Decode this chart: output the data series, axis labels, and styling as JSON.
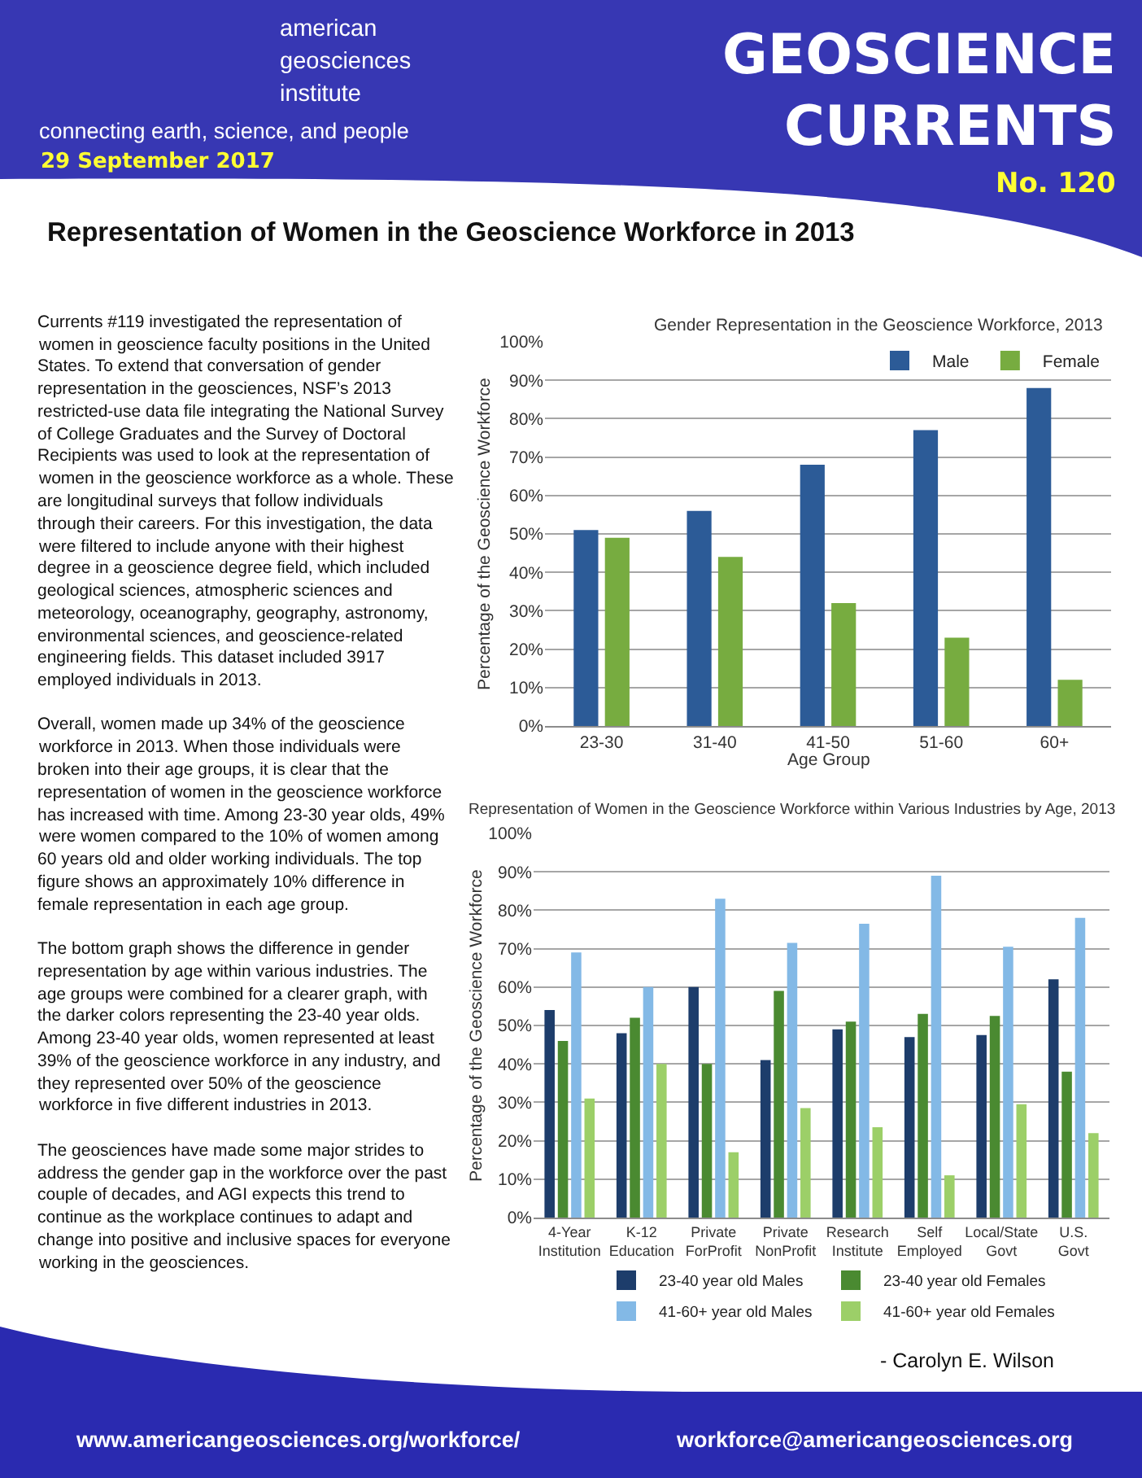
{
  "chart_data": [
    {
      "type": "other",
      "title": "Representation of Women in the Geoscience Workforce in 2013",
      "annotations": [
        "american\ngeosciences\ninstitute",
        "connecting earth, science, and people",
        "29 September 2017",
        "GEOSCIENCE\nCURRENTS",
        "No. 120",
        "Currents #119 investigated the representation of\nwomen in geoscience faculty positions in the United\nStates. To extend that conversation of gender\nrepresentation in the geosciences, NSF’s 2013\nrestricted-use data file integrating the National Survey\nof College Graduates and the Survey of Doctoral\nRecipients was used to look at the representation of\nwomen in the geoscience workforce as a whole. These\nare longitudinal surveys that follow individuals\nthrough their careers. For this investigation, the data\nwere filtered to include anyone with their highest\ndegree in a geoscience degree field, which included\ngeological sciences, atmospheric sciences and\nmeteorology, oceanography, geography, astronomy,\nenvironmental sciences, and geoscience-related\nengineering fields. This dataset included 3917\nemployed individuals in 2013.",
        "Overall, women made up 34% of the geoscience\nworkforce in 2013. When those individuals were\nbroken into their age groups, it is clear that the\nrepresentation of women in the geoscience workforce\nhas increased with time. Among 23-30 year olds, 49%\nwere women compared to the 10% of women among\n60 years old and older working individuals. The top\nfigure shows an approximately 10% difference in\nfemale representation in each age group.",
        "The bottom graph shows the difference in gender\nrepresentation by age within various industries. The\nage groups were combined for a clearer graph, with\nthe darker colors representing the 23-40 year olds.\nAmong 23-40 year olds, women represented at least\n39% of the geoscience workforce in any industry, and\nthey represented over 50% of the geoscience\nworkforce in five different industries in 2013.",
        "The geosciences have made some major strides to\naddress the gender gap in the workforce over the past\ncouple of decades, and AGI expects this trend to\ncontinue as the workplace continues to adapt and\nchange into positive and inclusive spaces for everyone\nworking in the geosciences."
      ]
    },
    {
      "type": "bar",
      "title": "Gender Representation in the Geoscience Workforce, 2013",
      "xlabel": "Age Group",
      "ylabel": "Percentage of the Geoscience Workforce",
      "categories": [
        "23-30",
        "31-40",
        "41-50",
        "51-60",
        "60+"
      ],
      "series": [
        {
          "name": "Male",
          "color": "#2c5b97",
          "values": [
            51,
            56,
            68,
            77,
            88
          ]
        },
        {
          "name": "Female",
          "color": "#77ac40",
          "values": [
            49,
            44,
            32,
            23,
            12
          ]
        }
      ],
      "ylim": [
        0,
        100
      ],
      "yticks": [
        {
          "value": 0,
          "label": "0%"
        },
        {
          "value": 10,
          "label": "10%"
        },
        {
          "value": 20,
          "label": "20%"
        },
        {
          "value": 30,
          "label": "30%"
        },
        {
          "value": 40,
          "label": "40%"
        },
        {
          "value": 50,
          "label": "50%"
        },
        {
          "value": 60,
          "label": "60%"
        },
        {
          "value": 70,
          "label": "70%"
        },
        {
          "value": 80,
          "label": "80%"
        },
        {
          "value": 90,
          "label": "90%"
        },
        {
          "value": 100,
          "label": "100%"
        }
      ],
      "grid": "y",
      "legend": "top right"
    },
    {
      "type": "bar",
      "title": "Representation of Women in the Geoscience Workforce within Various Industries by Age, 2013",
      "ylabel": "Percentage of the Geoscience Workforce",
      "categories": [
        "4-Year\nInstitution",
        "K-12\nEducation",
        "Private\nForProfit",
        "Private\nNonProfit",
        "Research\nInstitute",
        "Self\nEmployed",
        "Local/State\nGovt",
        "U.S.\nGovt"
      ],
      "series": [
        {
          "name": "23-40 year old Males",
          "color": "#1d3d6b",
          "values": [
            54,
            48,
            60,
            41,
            49,
            47,
            47.5,
            62
          ]
        },
        {
          "name": "23-40 year old Females",
          "color": "#4a8a31",
          "values": [
            46,
            52,
            40,
            59,
            51,
            53,
            52.5,
            38
          ]
        },
        {
          "name": "41-60+ year old Males",
          "color": "#83b9e6",
          "values": [
            69,
            60,
            83,
            71.5,
            76.5,
            89,
            70.5,
            78
          ]
        },
        {
          "name": "41-60+ year old Females",
          "color": "#9ccf68",
          "values": [
            31,
            40,
            17,
            28.5,
            23.5,
            11,
            29.5,
            22
          ]
        }
      ],
      "ylim": [
        0,
        100
      ],
      "yticks": [
        {
          "value": 0,
          "label": "0%"
        },
        {
          "value": 10,
          "label": "10%"
        },
        {
          "value": 20,
          "label": "20%"
        },
        {
          "value": 30,
          "label": "30%"
        },
        {
          "value": 40,
          "label": "40%"
        },
        {
          "value": 50,
          "label": "50%"
        },
        {
          "value": 60,
          "label": "60%"
        },
        {
          "value": 70,
          "label": "70%"
        },
        {
          "value": 80,
          "label": "80%"
        },
        {
          "value": 90,
          "label": "90%"
        },
        {
          "value": 100,
          "label": "100%"
        }
      ],
      "grid": "y",
      "legend": "bottom"
    },
    {
      "type": "other",
      "annotations": [
        "- Carolyn E. Wilson",
        "www.americangeosciences.org/workforce/",
        "workforce@americangeosciences.org"
      ]
    }
  ]
}
